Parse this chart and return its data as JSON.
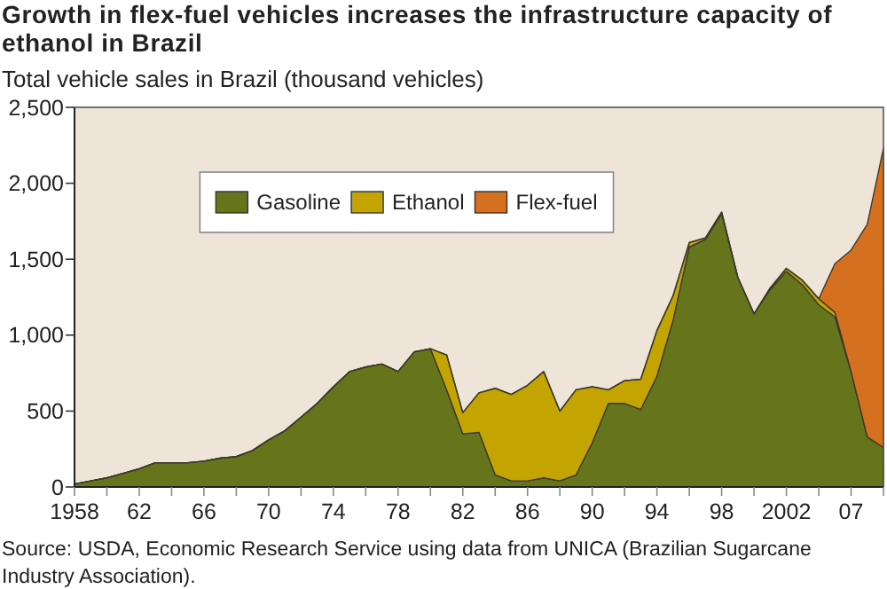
{
  "chart_data": {
    "type": "area",
    "stacked": true,
    "title": "Growth in flex-fuel vehicles increases the infrastructure capacity of ethanol in Brazil",
    "ylabel": "Total vehicle sales in Brazil (thousand vehicles)",
    "annotations": [
      "Source: USDA, Economic Research Service using data from UNICA (Brazilian Sugarcane Industry Association)."
    ],
    "categories": [
      "1958",
      null,
      null,
      null,
      "62",
      null,
      null,
      null,
      "66",
      null,
      null,
      null,
      "70",
      null,
      null,
      null,
      "74",
      null,
      null,
      null,
      "78",
      null,
      null,
      null,
      "82",
      null,
      null,
      null,
      "86",
      null,
      null,
      null,
      "90",
      null,
      null,
      null,
      "94",
      null,
      null,
      null,
      "98",
      null,
      null,
      null,
      "2002",
      null,
      null,
      null,
      "07",
      null,
      null
    ],
    "series": [
      {
        "name": "Gasoline",
        "color": "#66751c",
        "values": [
          20,
          40,
          60,
          90,
          120,
          160,
          160,
          160,
          170,
          190,
          200,
          240,
          310,
          370,
          460,
          550,
          660,
          760,
          790,
          810,
          760,
          890,
          910,
          640,
          350,
          360,
          80,
          40,
          40,
          60,
          40,
          80,
          290,
          550,
          550,
          510,
          730,
          1100,
          1580,
          1630,
          1800,
          1380,
          1140,
          1300,
          1420,
          1330,
          1200,
          1120,
          760,
          330,
          260
        ]
      },
      {
        "name": "Ethanol",
        "color": "#c4a400",
        "values": [
          0,
          0,
          0,
          0,
          0,
          0,
          0,
          0,
          0,
          0,
          0,
          0,
          0,
          0,
          0,
          0,
          0,
          0,
          0,
          0,
          0,
          0,
          0,
          230,
          140,
          260,
          570,
          570,
          630,
          700,
          460,
          560,
          370,
          90,
          150,
          200,
          300,
          160,
          30,
          10,
          10,
          0,
          0,
          10,
          20,
          30,
          40,
          30,
          0,
          0,
          0
        ]
      },
      {
        "name": "Flex-fuel",
        "color": "#d4701f",
        "values": [
          0,
          0,
          0,
          0,
          0,
          0,
          0,
          0,
          0,
          0,
          0,
          0,
          0,
          0,
          0,
          0,
          0,
          0,
          0,
          0,
          0,
          0,
          0,
          0,
          0,
          0,
          0,
          0,
          0,
          0,
          0,
          0,
          0,
          0,
          0,
          0,
          0,
          0,
          0,
          0,
          0,
          0,
          0,
          0,
          0,
          0,
          0,
          320,
          800,
          1400,
          1970
        ]
      }
    ],
    "ylim": [
      0,
      2500
    ],
    "yticks": [
      0,
      500,
      {
        "value": 1000,
        "label": "1,000"
      },
      {
        "value": 1500,
        "label": "1,500"
      },
      {
        "value": 2000,
        "label": "2,000"
      },
      {
        "value": 2500,
        "label": "2,500"
      }
    ],
    "legend": "top"
  }
}
